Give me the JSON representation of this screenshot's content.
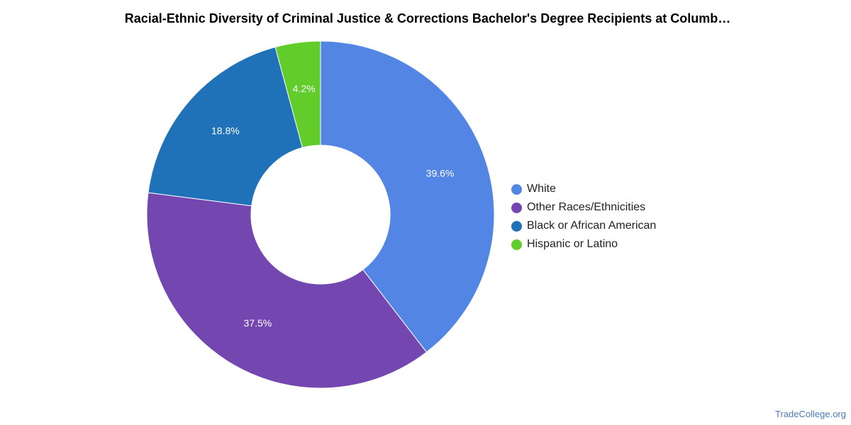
{
  "title": "Racial-Ethnic Diversity of Criminal Justice & Corrections Bachelor's Degree Recipients at Columb…",
  "source": "TradeCollege.org",
  "chart_data": {
    "type": "pie",
    "title": "Racial-Ethnic Diversity of Criminal Justice & Corrections Bachelor's Degree Recipients at Columb…",
    "donut": true,
    "legend_position": "right",
    "slices": [
      {
        "label": "White",
        "value": 39.6,
        "value_label": "39.6%",
        "color": "#5386e4"
      },
      {
        "label": "Other Races/Ethnicities",
        "value": 37.5,
        "value_label": "37.5%",
        "color": "#7446b0"
      },
      {
        "label": "Black or African American",
        "value": 18.8,
        "value_label": "18.8%",
        "color": "#1f72b8"
      },
      {
        "label": "Hispanic or Latino",
        "value": 4.2,
        "value_label": "4.2%",
        "color": "#62cc2a"
      }
    ]
  }
}
